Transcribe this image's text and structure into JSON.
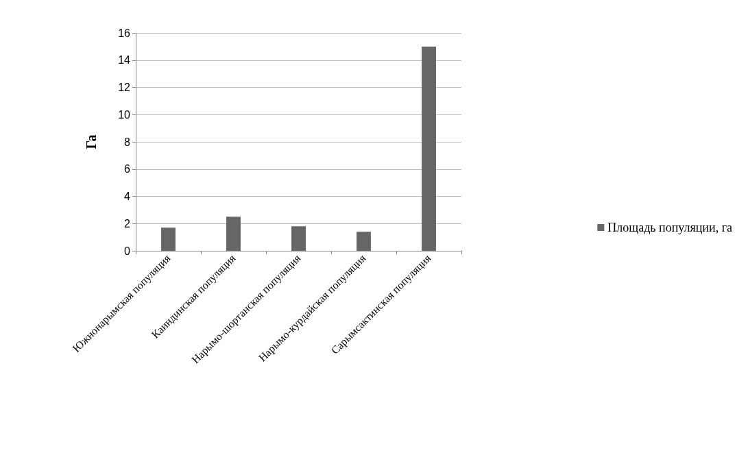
{
  "chart_data": {
    "type": "bar",
    "ylabel": "Га",
    "categories": [
      "Южнонарымская популяция",
      "Каиндинская популяция",
      "Нарымо-шортанская популяция",
      "Нарымо-курдайская популяция",
      "Сарымсактинская популяция"
    ],
    "series": [
      {
        "name": "Площадь популяции, га",
        "color": "#666666",
        "values": [
          1.7,
          2.5,
          1.8,
          1.4,
          15
        ]
      }
    ],
    "ylim": [
      0,
      16
    ],
    "yticks": [
      0,
      2,
      4,
      6,
      8,
      10,
      12,
      14,
      16
    ],
    "grid": true,
    "legend": "right"
  }
}
